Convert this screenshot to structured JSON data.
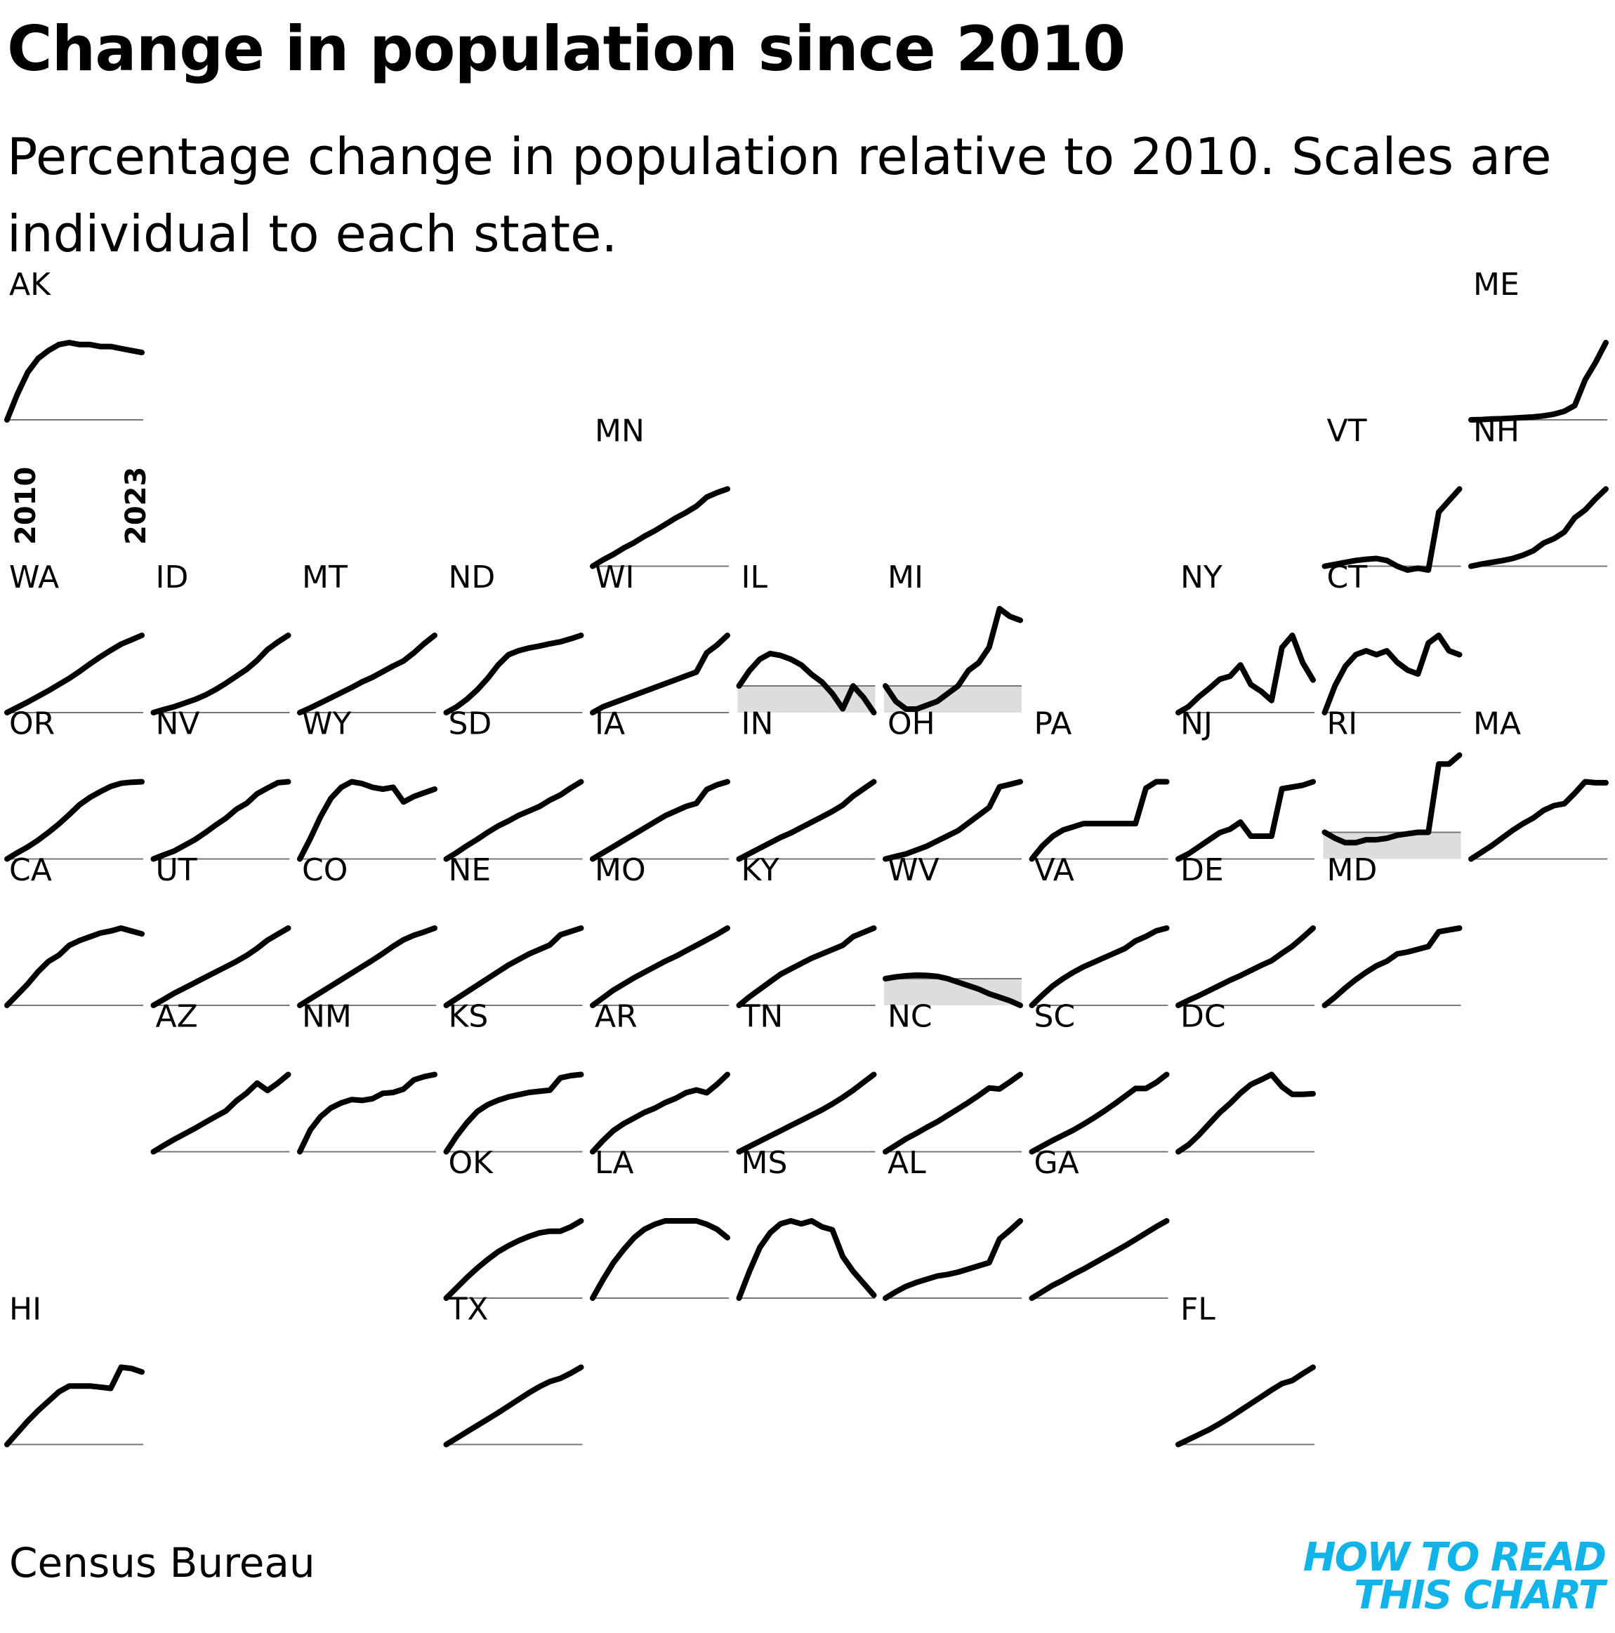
{
  "header": {
    "title": "Change in population since 2010",
    "subtitle": "Percentage change in population relative to 2010. Scales are individual to each state."
  },
  "footer": {
    "source": "Census Bureau",
    "brand_line1": "HOW TO READ",
    "brand_line2": "THIS CHART"
  },
  "colors": {
    "line": "#000000",
    "negative_fill": "#dddddd",
    "baseline": "#777777",
    "brand": "#12b3e8"
  },
  "chart_data": {
    "type": "line",
    "layout": "small-multiples tile grid map",
    "x_start_label": "2010",
    "x_end_label": "2023",
    "years": [
      2010,
      2011,
      2012,
      2013,
      2014,
      2015,
      2016,
      2017,
      2018,
      2019,
      2020,
      2021,
      2022,
      2023
    ],
    "scale": "individual per state",
    "states": [
      {
        "name": "AK",
        "row": 0,
        "col": 0,
        "values": [
          0,
          1.3,
          2.4,
          3.1,
          3.5,
          3.8,
          3.9,
          3.8,
          3.8,
          3.7,
          3.7,
          3.6,
          3.5,
          3.4
        ]
      },
      {
        "name": "ME",
        "row": 0,
        "col": 10,
        "values": [
          0,
          0.01,
          0.03,
          0.04,
          0.06,
          0.08,
          0.1,
          0.14,
          0.2,
          0.3,
          0.5,
          1.4,
          2.0,
          2.7
        ]
      },
      {
        "name": "MN",
        "row": 1,
        "col": 4,
        "values": [
          0,
          0.7,
          1.3,
          2,
          2.6,
          3.3,
          3.9,
          4.6,
          5.3,
          5.9,
          6.6,
          7.6,
          8.1,
          8.5
        ]
      },
      {
        "name": "VT",
        "row": 1,
        "col": 9,
        "values": [
          0,
          0.05,
          0.1,
          0.15,
          0.18,
          0.2,
          0.15,
          0.0,
          -0.1,
          -0.05,
          -0.1,
          1.4,
          1.7,
          2.0
        ]
      },
      {
        "name": "NH",
        "row": 1,
        "col": 10,
        "values": [
          0,
          0.2,
          0.35,
          0.5,
          0.7,
          1.0,
          1.4,
          2.1,
          2.5,
          3.1,
          4.4,
          5.1,
          6.1,
          7.0
        ]
      },
      {
        "name": "WA",
        "row": 2,
        "col": 0,
        "values": [
          0,
          1.2,
          2.4,
          3.7,
          5,
          6.4,
          7.8,
          9.4,
          11.1,
          12.7,
          14.2,
          15.6,
          16.6,
          17.6
        ]
      },
      {
        "name": "ID",
        "row": 2,
        "col": 1,
        "values": [
          0,
          1.1,
          2.1,
          3.4,
          4.7,
          6.3,
          8.3,
          10.6,
          13.1,
          15.6,
          18.8,
          22.7,
          25.4,
          27.8
        ]
      },
      {
        "name": "MT",
        "row": 2,
        "col": 2,
        "values": [
          0,
          0.9,
          1.9,
          2.9,
          3.9,
          4.9,
          6.0,
          6.9,
          8.0,
          9.1,
          10.1,
          11.7,
          13.5,
          15.1
        ]
      },
      {
        "name": "ND",
        "row": 2,
        "col": 3,
        "values": [
          0,
          1.5,
          3.5,
          6,
          9,
          12.5,
          15.2,
          16.3,
          17,
          17.5,
          18.1,
          18.6,
          19.4,
          20.3
        ]
      },
      {
        "name": "WI",
        "row": 2,
        "col": 4,
        "values": [
          0,
          0.3,
          0.5,
          0.7,
          0.9,
          1.1,
          1.3,
          1.5,
          1.7,
          1.9,
          2.1,
          3.1,
          3.5,
          4.0
        ]
      },
      {
        "name": "IL",
        "row": 2,
        "col": 5,
        "values": [
          0,
          0.4,
          0.7,
          0.85,
          0.8,
          0.7,
          0.55,
          0.3,
          0.1,
          -0.2,
          -0.6,
          0.0,
          -0.3,
          -0.7
        ]
      },
      {
        "name": "MI",
        "row": 2,
        "col": 6,
        "values": [
          0,
          -0.2,
          -0.3,
          -0.3,
          -0.25,
          -0.2,
          -0.1,
          0.0,
          0.2,
          0.3,
          0.5,
          1.0,
          0.9,
          0.85
        ]
      },
      {
        "name": "NY",
        "row": 2,
        "col": 8,
        "values": [
          0,
          0.8,
          2.1,
          3.2,
          4.4,
          4.8,
          6.3,
          3.7,
          2.8,
          1.6,
          8.6,
          10.2,
          6.6,
          4.3
        ]
      },
      {
        "name": "CT",
        "row": 2,
        "col": 9,
        "values": [
          0,
          0.35,
          0.6,
          0.75,
          0.8,
          0.75,
          0.8,
          0.65,
          0.55,
          0.5,
          0.9,
          1.0,
          0.8,
          0.75
        ]
      },
      {
        "name": "OR",
        "row": 3,
        "col": 0,
        "values": [
          0,
          1.2,
          2.3,
          3.6,
          5.1,
          6.7,
          8.5,
          10.4,
          11.8,
          12.9,
          13.9,
          14.5,
          14.7,
          14.8
        ]
      },
      {
        "name": "NV",
        "row": 3,
        "col": 1,
        "values": [
          0,
          1.3,
          2.5,
          4.3,
          6.1,
          8.3,
          10.7,
          12.9,
          15.7,
          17.6,
          20.6,
          22.4,
          24.1,
          24.4
        ]
      },
      {
        "name": "WY",
        "row": 3,
        "col": 2,
        "values": [
          0,
          1.1,
          2.3,
          3.3,
          3.9,
          4.2,
          4.1,
          3.9,
          3.8,
          3.9,
          3.1,
          3.4,
          3.6,
          3.8
        ]
      },
      {
        "name": "SD",
        "row": 3,
        "col": 3,
        "values": [
          0,
          1.0,
          2.1,
          3.1,
          4.2,
          5.2,
          6.0,
          6.9,
          7.6,
          8.3,
          9.3,
          10.1,
          11.2,
          12.2
        ]
      },
      {
        "name": "IA",
        "row": 3,
        "col": 4,
        "values": [
          0,
          0.4,
          0.8,
          1.2,
          1.6,
          2.0,
          2.4,
          2.8,
          3.1,
          3.4,
          3.6,
          4.5,
          4.8,
          5.0
        ]
      },
      {
        "name": "IN",
        "row": 3,
        "col": 5,
        "values": [
          0,
          0.6,
          1.2,
          1.8,
          2.4,
          2.9,
          3.5,
          4.1,
          4.7,
          5.3,
          6.0,
          7.0,
          7.8,
          8.6
        ]
      },
      {
        "name": "OH",
        "row": 3,
        "col": 6,
        "values": [
          0,
          0.1,
          0.2,
          0.35,
          0.5,
          0.7,
          0.9,
          1.1,
          1.4,
          1.7,
          2.0,
          2.8,
          2.9,
          3.0
        ]
      },
      {
        "name": "PA",
        "row": 3,
        "col": 7,
        "values": [
          0,
          0.2,
          0.35,
          0.45,
          0.5,
          0.55,
          0.55,
          0.55,
          0.55,
          0.55,
          0.55,
          1.1,
          1.2,
          1.2
        ]
      },
      {
        "name": "NJ",
        "row": 3,
        "col": 8,
        "values": [
          0,
          0.3,
          0.7,
          1.1,
          1.5,
          1.7,
          2.1,
          1.3,
          1.3,
          1.3,
          4.0,
          4.1,
          4.2,
          4.4
        ]
      },
      {
        "name": "RI",
        "row": 3,
        "col": 9,
        "values": [
          0,
          -0.2,
          -0.35,
          -0.35,
          -0.25,
          -0.25,
          -0.2,
          -0.1,
          -0.05,
          0.0,
          0.0,
          2.3,
          2.3,
          2.6
        ]
      },
      {
        "name": "MA",
        "row": 3,
        "col": 10,
        "values": [
          0,
          0.7,
          1.4,
          2.2,
          3.0,
          3.7,
          4.3,
          5.1,
          5.6,
          5.8,
          6.9,
          8.1,
          8.0,
          8.0
        ]
      },
      {
        "name": "CA",
        "row": 4,
        "col": 0,
        "values": [
          0,
          2.6,
          5.2,
          8.2,
          10.7,
          12.2,
          14.6,
          15.8,
          16.7,
          17.6,
          18.1,
          18.8,
          18.1,
          17.4
        ]
      },
      {
        "name": "UT",
        "row": 4,
        "col": 1,
        "values": [
          0,
          1.7,
          3.4,
          4.9,
          6.4,
          7.9,
          9.4,
          10.9,
          12.4,
          14.1,
          16.1,
          18.4,
          20.1,
          21.8
        ]
      },
      {
        "name": "CO",
        "row": 4,
        "col": 2,
        "values": [
          0,
          1.7,
          3.4,
          5.1,
          6.8,
          8.5,
          10.2,
          11.9,
          13.7,
          15.6,
          17.3,
          18.5,
          19.4,
          20.4
        ]
      },
      {
        "name": "NE",
        "row": 4,
        "col": 3,
        "values": [
          0,
          0.6,
          1.2,
          1.8,
          2.4,
          3.0,
          3.6,
          4.1,
          4.6,
          5.0,
          5.4,
          6.3,
          6.6,
          6.9
        ]
      },
      {
        "name": "MO",
        "row": 4,
        "col": 4,
        "values": [
          0,
          0.55,
          1.1,
          1.55,
          2.0,
          2.4,
          2.8,
          3.2,
          3.55,
          3.95,
          4.35,
          4.75,
          5.15,
          5.6
        ]
      },
      {
        "name": "KY",
        "row": 4,
        "col": 5,
        "values": [
          0,
          0.4,
          0.75,
          1.1,
          1.45,
          1.7,
          1.95,
          2.2,
          2.4,
          2.6,
          2.8,
          3.2,
          3.4,
          3.6
        ]
      },
      {
        "name": "WV",
        "row": 4,
        "col": 6,
        "values": [
          0,
          0.15,
          0.25,
          0.3,
          0.28,
          0.2,
          0.0,
          -0.3,
          -0.6,
          -0.9,
          -1.3,
          -1.6,
          -1.9,
          -2.3
        ]
      },
      {
        "name": "VA",
        "row": 4,
        "col": 7,
        "values": [
          0,
          1.1,
          2.1,
          2.9,
          3.6,
          4.2,
          4.7,
          5.2,
          5.7,
          6.2,
          7.0,
          7.5,
          8.1,
          8.4
        ]
      },
      {
        "name": "DE",
        "row": 4,
        "col": 8,
        "values": [
          0,
          1.1,
          2.1,
          3.2,
          4.3,
          5.4,
          6.4,
          7.5,
          8.6,
          9.6,
          11.2,
          12.7,
          14.6,
          16.6
        ]
      },
      {
        "name": "MD",
        "row": 4,
        "col": 9,
        "values": [
          0,
          0.9,
          1.9,
          2.8,
          3.6,
          4.3,
          4.8,
          5.6,
          5.8,
          6.1,
          6.4,
          8.0,
          8.2,
          8.4
        ]
      },
      {
        "name": "AZ",
        "row": 5,
        "col": 1,
        "values": [
          0,
          1.7,
          3.3,
          4.8,
          6.3,
          7.9,
          9.5,
          11.0,
          13.7,
          15.8,
          18.5,
          16.5,
          18.5,
          20.8
        ]
      },
      {
        "name": "NM",
        "row": 5,
        "col": 2,
        "values": [
          0,
          0.52,
          0.84,
          1.05,
          1.17,
          1.25,
          1.23,
          1.27,
          1.4,
          1.42,
          1.5,
          1.72,
          1.8,
          1.85
        ]
      },
      {
        "name": "KS",
        "row": 5,
        "col": 3,
        "values": [
          0,
          0.7,
          1.3,
          1.8,
          2.1,
          2.3,
          2.45,
          2.55,
          2.65,
          2.7,
          2.75,
          3.3,
          3.4,
          3.45
        ]
      },
      {
        "name": "AR",
        "row": 5,
        "col": 4,
        "values": [
          0,
          0.8,
          1.5,
          2.0,
          2.4,
          2.8,
          3.1,
          3.5,
          3.8,
          4.2,
          4.4,
          4.2,
          4.8,
          5.5
        ]
      },
      {
        "name": "TN",
        "row": 5,
        "col": 5,
        "values": [
          0,
          0.8,
          1.6,
          2.4,
          3.2,
          4.0,
          4.8,
          5.6,
          6.4,
          7.3,
          8.3,
          9.4,
          10.6,
          11.8
        ]
      },
      {
        "name": "NC",
        "row": 5,
        "col": 6,
        "values": [
          0,
          1.3,
          2.6,
          3.7,
          4.9,
          6.0,
          7.3,
          8.6,
          9.9,
          11.3,
          12.8,
          12.6,
          14.0,
          15.5
        ]
      },
      {
        "name": "SC",
        "row": 5,
        "col": 7,
        "values": [
          0,
          1.4,
          2.8,
          4.1,
          5.4,
          6.9,
          8.5,
          10.2,
          12.0,
          13.9,
          15.8,
          15.8,
          17.3,
          19.3
        ]
      },
      {
        "name": "DC",
        "row": 5,
        "col": 8,
        "values": [
          0,
          2.3,
          5.5,
          9.2,
          12.8,
          15.8,
          19.2,
          22.0,
          23.6,
          25.3,
          21.3,
          18.8,
          18.8,
          19.0
        ]
      },
      {
        "name": "OK",
        "row": 6,
        "col": 3,
        "values": [
          0,
          1.2,
          2.4,
          3.5,
          4.5,
          5.4,
          6.1,
          6.7,
          7.2,
          7.6,
          7.8,
          7.8,
          8.3,
          9.0
        ]
      },
      {
        "name": "LA",
        "row": 6,
        "col": 4,
        "values": [
          0,
          1.1,
          2.1,
          2.9,
          3.6,
          4.1,
          4.4,
          4.6,
          4.6,
          4.6,
          4.6,
          4.4,
          4.1,
          3.6
        ]
      },
      {
        "name": "MS",
        "row": 6,
        "col": 5,
        "values": [
          0,
          0.9,
          1.7,
          2.2,
          2.5,
          2.6,
          2.5,
          2.6,
          2.4,
          2.3,
          1.4,
          0.9,
          0.5,
          0.1
        ]
      },
      {
        "name": "AL",
        "row": 6,
        "col": 6,
        "values": [
          0,
          0.8,
          1.5,
          2.0,
          2.4,
          2.8,
          3.0,
          3.3,
          3.7,
          4.1,
          4.5,
          7.5,
          8.6,
          9.8
        ]
      },
      {
        "name": "GA",
        "row": 6,
        "col": 7,
        "values": [
          0,
          1.2,
          2.4,
          3.4,
          4.5,
          5.5,
          6.6,
          7.7,
          8.8,
          9.9,
          11.1,
          12.3,
          13.5,
          14.6
        ]
      },
      {
        "name": "HI",
        "row": 7,
        "col": 0,
        "values": [
          0,
          1.0,
          2.0,
          2.9,
          3.7,
          4.5,
          5.0,
          5.0,
          5.0,
          4.9,
          4.8,
          6.6,
          6.5,
          6.2
        ]
      },
      {
        "name": "TX",
        "row": 7,
        "col": 3,
        "values": [
          0,
          1.6,
          3.2,
          4.8,
          6.4,
          8.0,
          9.7,
          11.4,
          13.1,
          14.6,
          15.9,
          16.7,
          18.0,
          19.5
        ]
      },
      {
        "name": "FL",
        "row": 7,
        "col": 8,
        "values": [
          0,
          1.1,
          2.2,
          3.3,
          4.6,
          6.0,
          7.5,
          9.0,
          10.5,
          12.0,
          13.4,
          14.1,
          15.6,
          17.0
        ]
      }
    ]
  }
}
